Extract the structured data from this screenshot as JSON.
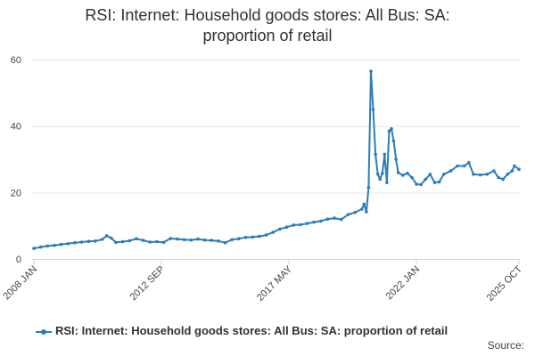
{
  "chart_data": {
    "type": "line",
    "title_lines": [
      "RSI: Internet: Household goods stores: All Bus: SA:",
      "proportion of retail"
    ],
    "xlabel": "",
    "ylabel": "",
    "ylim": [
      0,
      60
    ],
    "y_ticks": [
      "0",
      "20",
      "40",
      "60"
    ],
    "x_ticks": [
      "2008 JAN",
      "2012 SEP",
      "2017 MAY",
      "2022 JAN",
      "2025 OCT"
    ],
    "x_range": [
      "2008-01",
      "2025-10"
    ],
    "grid": true,
    "legend_position": "bottom",
    "series": [
      {
        "name": "RSI: Internet: Household goods stores: All Bus: SA: proportion of retail",
        "color": "#2d7db8",
        "points": [
          [
            "2008-01",
            3.2
          ],
          [
            "2008-04",
            3.6
          ],
          [
            "2008-07",
            3.9
          ],
          [
            "2008-10",
            4.1
          ],
          [
            "2009-01",
            4.4
          ],
          [
            "2009-04",
            4.6
          ],
          [
            "2009-07",
            4.9
          ],
          [
            "2009-10",
            5.1
          ],
          [
            "2010-01",
            5.3
          ],
          [
            "2010-04",
            5.4
          ],
          [
            "2010-07",
            5.9
          ],
          [
            "2010-09",
            7.0
          ],
          [
            "2010-11",
            6.3
          ],
          [
            "2011-01",
            5.0
          ],
          [
            "2011-04",
            5.2
          ],
          [
            "2011-07",
            5.5
          ],
          [
            "2011-10",
            6.1
          ],
          [
            "2012-01",
            5.6
          ],
          [
            "2012-04",
            5.1
          ],
          [
            "2012-07",
            5.2
          ],
          [
            "2012-10",
            5.0
          ],
          [
            "2013-01",
            6.2
          ],
          [
            "2013-04",
            6.0
          ],
          [
            "2013-07",
            5.8
          ],
          [
            "2013-10",
            5.7
          ],
          [
            "2014-01",
            6.0
          ],
          [
            "2014-04",
            5.7
          ],
          [
            "2014-07",
            5.6
          ],
          [
            "2014-10",
            5.4
          ],
          [
            "2015-01",
            4.9
          ],
          [
            "2015-04",
            5.8
          ],
          [
            "2015-07",
            6.1
          ],
          [
            "2015-10",
            6.5
          ],
          [
            "2016-01",
            6.6
          ],
          [
            "2016-04",
            6.8
          ],
          [
            "2016-07",
            7.2
          ],
          [
            "2016-10",
            8.0
          ],
          [
            "2017-01",
            9.0
          ],
          [
            "2017-04",
            9.6
          ],
          [
            "2017-07",
            10.2
          ],
          [
            "2017-10",
            10.3
          ],
          [
            "2018-01",
            10.7
          ],
          [
            "2018-04",
            11.1
          ],
          [
            "2018-07",
            11.4
          ],
          [
            "2018-10",
            12.0
          ],
          [
            "2019-01",
            12.3
          ],
          [
            "2019-04",
            11.9
          ],
          [
            "2019-07",
            13.4
          ],
          [
            "2019-10",
            14.0
          ],
          [
            "2020-01",
            15.0
          ],
          [
            "2020-02",
            16.5
          ],
          [
            "2020-03",
            14.2
          ],
          [
            "2020-04",
            21.5
          ],
          [
            "2020-05",
            56.5
          ],
          [
            "2020-06",
            45.0
          ],
          [
            "2020-07",
            31.5
          ],
          [
            "2020-08",
            25.5
          ],
          [
            "2020-09",
            24.0
          ],
          [
            "2020-10",
            25.8
          ],
          [
            "2020-11",
            31.5
          ],
          [
            "2020-12",
            23.0
          ],
          [
            "2021-01",
            38.5
          ],
          [
            "2021-02",
            39.2
          ],
          [
            "2021-03",
            35.5
          ],
          [
            "2021-04",
            30.0
          ],
          [
            "2021-05",
            26.0
          ],
          [
            "2021-07",
            25.2
          ],
          [
            "2021-09",
            25.8
          ],
          [
            "2021-11",
            24.5
          ],
          [
            "2022-01",
            22.5
          ],
          [
            "2022-03",
            22.4
          ],
          [
            "2022-05",
            24.0
          ],
          [
            "2022-07",
            25.5
          ],
          [
            "2022-09",
            23.0
          ],
          [
            "2022-11",
            23.2
          ],
          [
            "2023-01",
            25.5
          ],
          [
            "2023-04",
            26.5
          ],
          [
            "2023-07",
            28.0
          ],
          [
            "2023-10",
            28.0
          ],
          [
            "2023-12",
            29.0
          ],
          [
            "2024-02",
            25.5
          ],
          [
            "2024-05",
            25.3
          ],
          [
            "2024-08",
            25.5
          ],
          [
            "2024-11",
            26.5
          ],
          [
            "2025-01",
            24.5
          ],
          [
            "2025-03",
            24.0
          ],
          [
            "2025-05",
            25.5
          ],
          [
            "2025-07",
            26.5
          ],
          [
            "2025-08",
            28.0
          ],
          [
            "2025-10",
            27.0
          ]
        ]
      }
    ]
  },
  "legend": {
    "label": "RSI: Internet: Household goods stores: All Bus: SA: proportion of retail"
  },
  "source_label": "Source:"
}
